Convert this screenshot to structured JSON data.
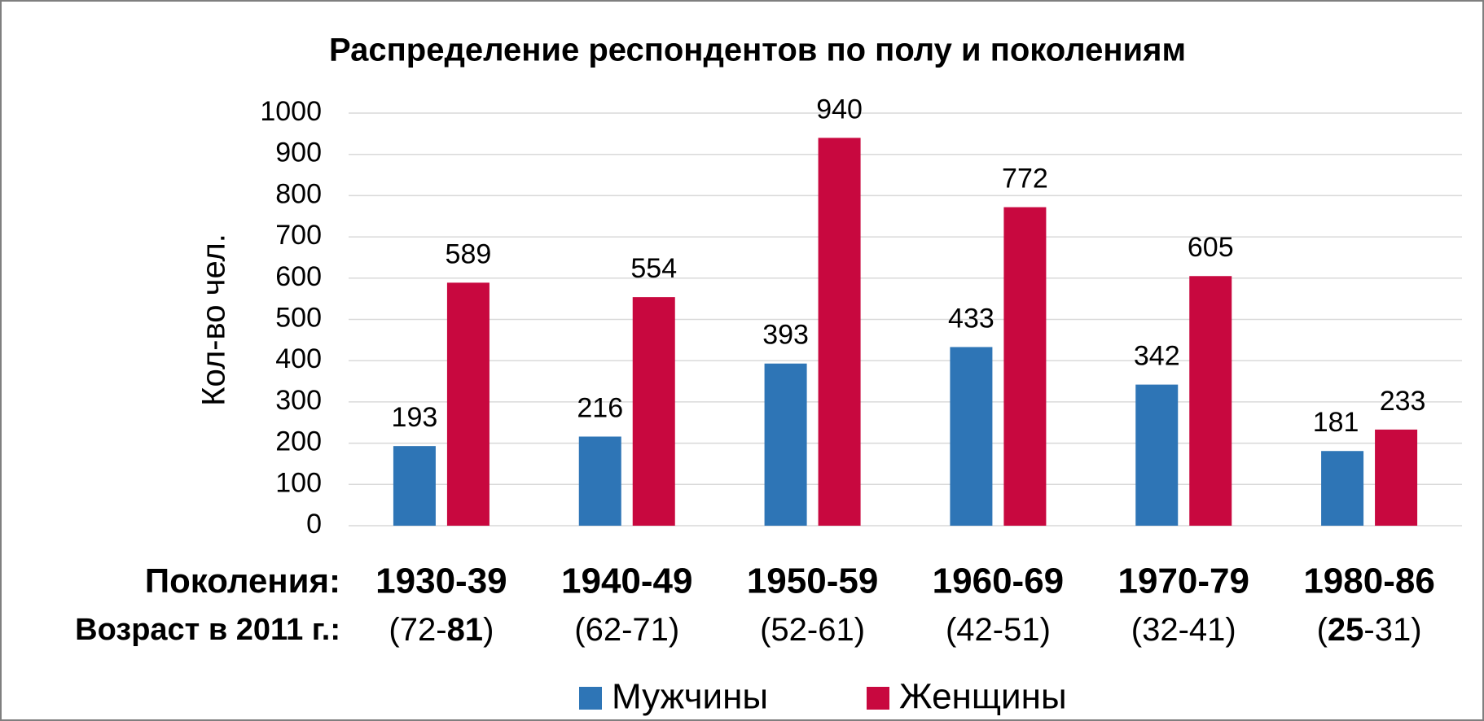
{
  "chart_data": {
    "type": "bar",
    "title": "Распределение респондентов по полу и поколениям",
    "y_label": "Кол-во чел.",
    "row_labels": [
      "Поколения:",
      "Возраст в 2011 г.:"
    ],
    "categories": [
      "1930-39",
      "1940-49",
      "1950-59",
      "1960-69",
      "1970-79",
      "1980-86"
    ],
    "ages": [
      [
        {
          "text": "(72-"
        },
        {
          "text": "81",
          "bold": true
        },
        {
          "text": ")"
        }
      ],
      [
        {
          "text": "(62-71)"
        }
      ],
      [
        {
          "text": "(52-61)"
        }
      ],
      [
        {
          "text": "(42-51)"
        }
      ],
      [
        {
          "text": "(32-41)"
        }
      ],
      [
        {
          "text": "("
        },
        {
          "text": "25",
          "bold": true
        },
        {
          "text": "-31)"
        }
      ]
    ],
    "series": [
      {
        "name": "Мужчины",
        "color": "#2e75b6",
        "values": [
          193,
          216,
          393,
          433,
          342,
          181
        ]
      },
      {
        "name": "Женщины",
        "color": "#c8083f",
        "values": [
          589,
          554,
          940,
          772,
          605,
          233
        ]
      }
    ],
    "ylim": [
      0,
      1000
    ],
    "yticks": [
      0,
      100,
      200,
      300,
      400,
      500,
      600,
      700,
      800,
      900,
      1000
    ],
    "grid": true,
    "legend": "bottom"
  }
}
